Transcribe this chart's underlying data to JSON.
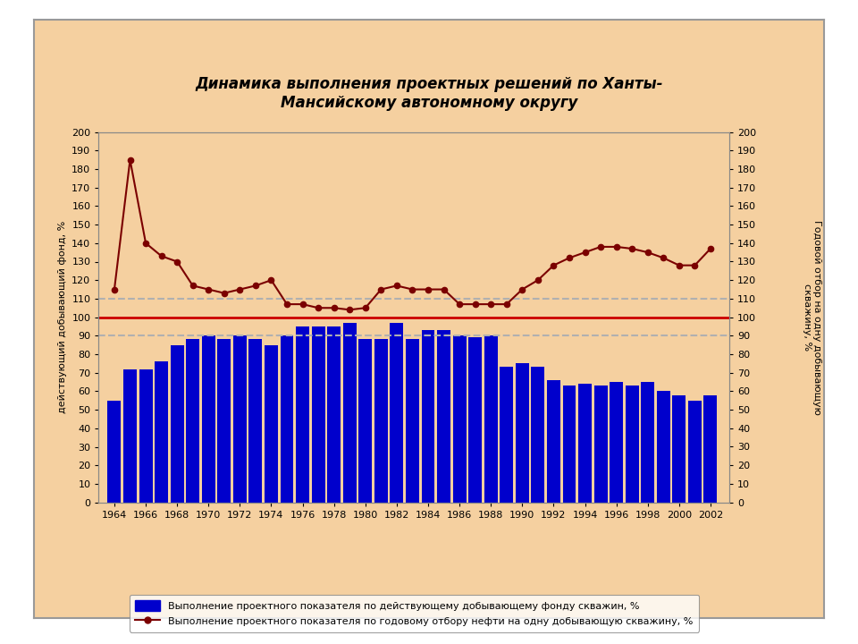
{
  "title": "Динамика выполнения проектных решений по Ханты-\nМансийскому автономному округу",
  "years": [
    1964,
    1965,
    1966,
    1967,
    1968,
    1969,
    1970,
    1971,
    1972,
    1973,
    1974,
    1975,
    1976,
    1977,
    1978,
    1979,
    1980,
    1981,
    1982,
    1983,
    1984,
    1985,
    1986,
    1987,
    1988,
    1989,
    1990,
    1991,
    1992,
    1993,
    1994,
    1995,
    1996,
    1997,
    1998,
    1999,
    2000,
    2001,
    2002
  ],
  "bar_values": [
    55,
    72,
    72,
    76,
    85,
    88,
    90,
    88,
    90,
    88,
    85,
    90,
    95,
    95,
    95,
    97,
    88,
    88,
    97,
    88,
    93,
    93,
    90,
    89,
    90,
    73,
    75,
    73,
    66,
    63,
    64,
    63,
    65,
    63,
    65,
    60,
    58,
    55,
    58
  ],
  "line_values": [
    115,
    185,
    140,
    133,
    130,
    117,
    115,
    113,
    115,
    117,
    120,
    107,
    107,
    105,
    105,
    104,
    105,
    115,
    117,
    115,
    115,
    115,
    107,
    107,
    107,
    107,
    115,
    120,
    128,
    132,
    135,
    138,
    138,
    137,
    135,
    132,
    128,
    128,
    137
  ],
  "bar_color": "#0000CC",
  "line_color": "#7B0000",
  "outer_bg": "#F5D0A0",
  "inner_bg": "#F5D0A0",
  "white_bg": "#FFFFFF",
  "hline1_y": 110,
  "hline2_y": 100,
  "hline3_y": 90,
  "hline1_color": "#B0B0B0",
  "hline2_color": "#CC0000",
  "hline3_color": "#B0B0B0",
  "ylabel_left": "действующий добывающий фонд, %",
  "ylabel_right": "Годовой отбор на одну добывающую\nскважину, %",
  "legend_bar": "Выполнение проектного показателя по действующему добывающему фонду скважин, %",
  "legend_line": "Выполнение проектного показателя по годовому отбору нефти на одну добывающую скважину, %",
  "ylim": [
    0,
    200
  ],
  "yticks": [
    0,
    10,
    20,
    30,
    40,
    50,
    60,
    70,
    80,
    90,
    100,
    110,
    120,
    130,
    140,
    150,
    160,
    170,
    180,
    190,
    200
  ],
  "xtick_years": [
    1964,
    1966,
    1968,
    1970,
    1972,
    1974,
    1976,
    1978,
    1980,
    1982,
    1984,
    1986,
    1988,
    1990,
    1992,
    1994,
    1996,
    1998,
    2000,
    2002
  ]
}
